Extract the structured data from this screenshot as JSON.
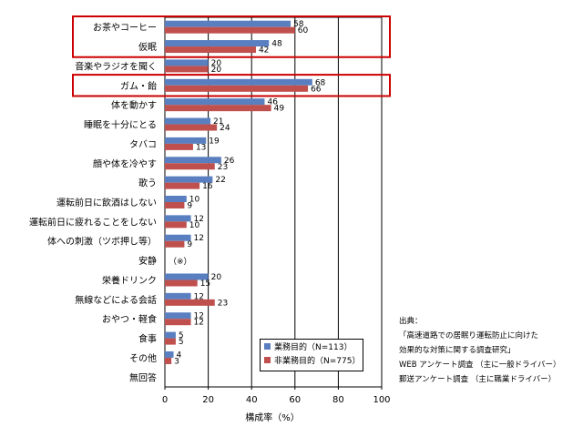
{
  "chart_data": {
    "type": "bar",
    "orientation": "horizontal",
    "categories": [
      "お茶やコーヒー",
      "仮眠",
      "音楽やラジオを聞く",
      "ガム・飴",
      "体を動かす",
      "睡眠を十分にとる",
      "タバコ",
      "顔や体を冷やす",
      "歌う",
      "運転前日に飲酒はしない",
      "運転前日に疲れることをしない",
      "体への刺激（ツボ押し等）",
      "安静",
      "栄養ドリンク",
      "無線などによる会話",
      "おやつ・軽食",
      "食事",
      "その他",
      "無回答"
    ],
    "series": [
      {
        "name": "業務目的（N=113）",
        "color": "#5a7fc0",
        "values": [
          58,
          48,
          20,
          68,
          46,
          21,
          19,
          26,
          22,
          10,
          12,
          12,
          null,
          20,
          12,
          12,
          5,
          4,
          null
        ]
      },
      {
        "name": "非業務目的（N=775）",
        "color": "#c0504d",
        "values": [
          60,
          42,
          20,
          66,
          49,
          24,
          13,
          23,
          16,
          9,
          10,
          9,
          null,
          15,
          23,
          12,
          5,
          3,
          null
        ]
      }
    ],
    "special_labels": {
      "12": "（※）"
    },
    "highlighted_categories": [
      0,
      1,
      3
    ],
    "highlight_color": "#cc0000",
    "xlabel": "構成率（%）",
    "xlim": [
      0,
      100
    ],
    "xticks": [
      0,
      20,
      40,
      60,
      80,
      100
    ],
    "grid": true,
    "legend_position": "bottom-right"
  },
  "source": {
    "heading": "出典：",
    "lines": [
      "「高速道路での居眠り運転防止に向けた",
      "効果的な対策に関する調査研究」",
      "WEB アンケート調査 （主に一般ドライバー）",
      "郵送アンケート調査 （主に職業ドライバー）"
    ]
  }
}
